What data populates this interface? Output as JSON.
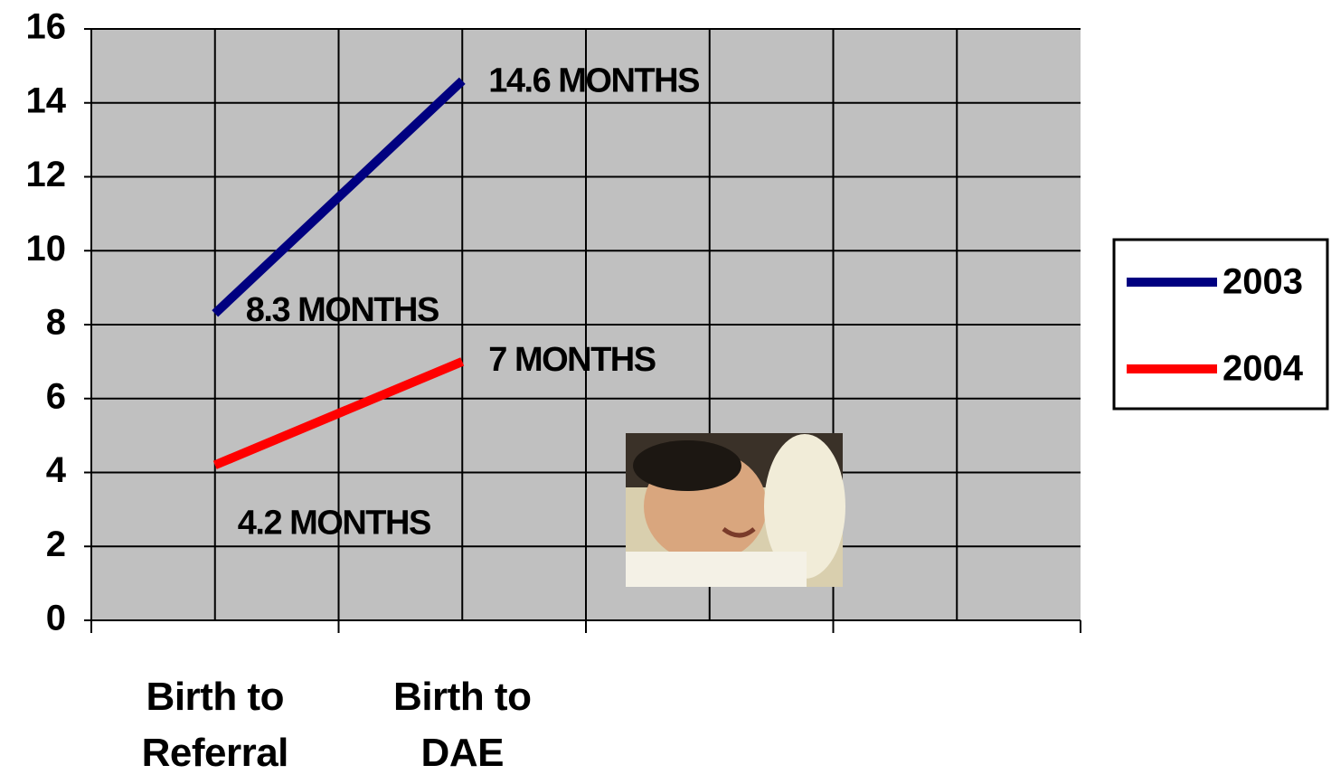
{
  "chart_data": {
    "type": "line",
    "categories": [
      "Birth to Referral",
      "Birth to DAE",
      null,
      null
    ],
    "series": [
      {
        "name": "2003",
        "color": "#000080",
        "values": [
          8.3,
          14.6,
          null,
          null
        ],
        "value_labels": [
          "8.3 MONTHS",
          "14.6 MONTHS",
          null,
          null
        ]
      },
      {
        "name": "2004",
        "color": "#ff0000",
        "values": [
          4.2,
          7,
          null,
          null
        ],
        "value_labels": [
          "4.2 MONTHS",
          "7 MONTHS",
          null,
          null
        ]
      }
    ],
    "ylim": [
      0,
      16
    ],
    "yticks": [
      0,
      2,
      4,
      6,
      8,
      10,
      12,
      14,
      16
    ],
    "grid": true,
    "legend": "right"
  }
}
